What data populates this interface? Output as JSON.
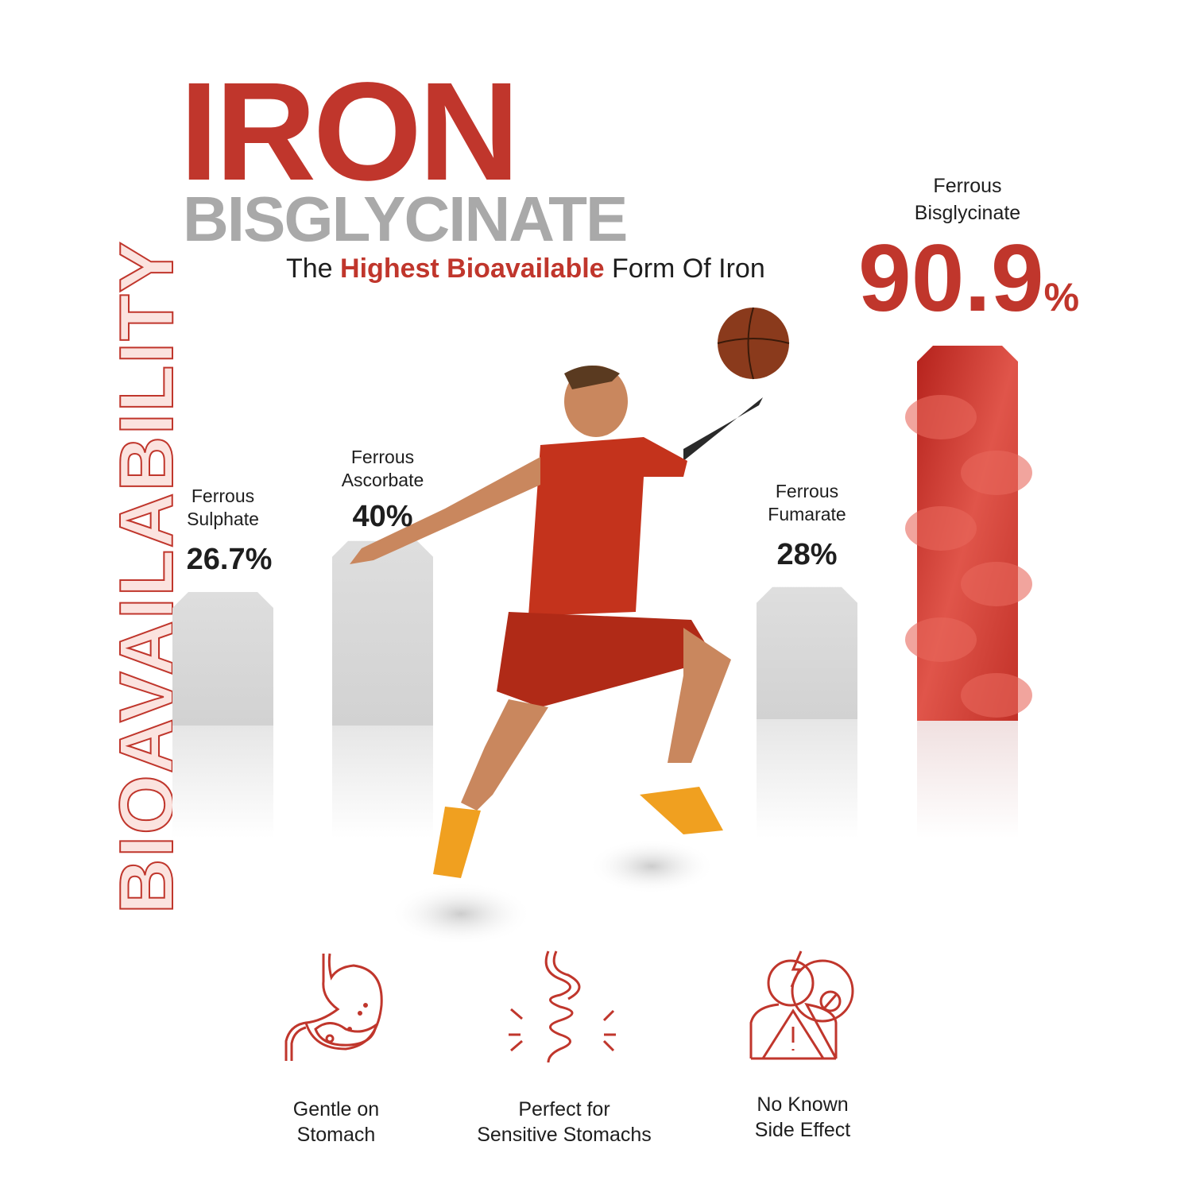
{
  "header": {
    "title_line1": "IRON",
    "title_line2": "BISGLYCINATE",
    "subtitle_pre": "The ",
    "subtitle_highlight": "Highest Bioavailable",
    "subtitle_post": " Form Of Iron"
  },
  "side_label": "BIOAVAILABILITY",
  "colors": {
    "accent": "#c0362c",
    "bar_gray": "#dcdcdc",
    "title_gray": "#a9a9a9"
  },
  "chart_data": {
    "type": "bar",
    "ylabel": "BIOAVAILABILITY",
    "categories": [
      "Ferrous Sulphate",
      "Ferrous Ascorbate",
      "Ferrous Fumarate",
      "Ferrous Bisglycinate"
    ],
    "label_lines": [
      [
        "Ferrous",
        "Sulphate"
      ],
      [
        "Ferrous",
        "Ascorbate"
      ],
      [
        "Ferrous",
        "Fumarate"
      ],
      [
        "Ferrous",
        "Bisglycinate"
      ]
    ],
    "values": [
      26.7,
      40,
      28,
      90.9
    ],
    "value_labels": [
      "26.7%",
      "40%",
      "28%",
      "90.9"
    ],
    "highlight_index": 3,
    "unit": "%"
  },
  "features": [
    {
      "icon": "stomach-icon",
      "line1": "Gentle on",
      "line2": "Stomach"
    },
    {
      "icon": "intestine-icon",
      "line1": "Perfect for",
      "line2": "Sensitive Stomachs"
    },
    {
      "icon": "person-warning-icon",
      "line1": "No Known",
      "line2": "Side Effect"
    }
  ]
}
